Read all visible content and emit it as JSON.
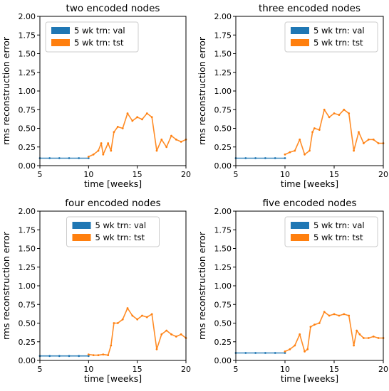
{
  "colors": {
    "val": "#1f77b4",
    "tst": "#ff7f0e"
  },
  "chart_data": [
    {
      "type": "line",
      "title": "two encoded nodes",
      "xlabel": "time [weeks]",
      "ylabel": "rms reconstruction error",
      "xlim": [
        5,
        20
      ],
      "ylim": [
        0,
        2
      ],
      "xticks": [
        "5",
        "10",
        "15",
        "20"
      ],
      "yticks": [
        "0.00",
        "0.25",
        "0.50",
        "0.75",
        "1.00",
        "1.25",
        "1.50",
        "1.75",
        "2.00"
      ],
      "legend_position": "upper-left",
      "series": [
        {
          "name": "5 wk trn: val",
          "color_key": "val",
          "x": [
            5,
            6,
            7,
            8,
            9,
            10
          ],
          "y": [
            0.1,
            0.1,
            0.1,
            0.1,
            0.1,
            0.1
          ]
        },
        {
          "name": "5 wk trn: tst",
          "color_key": "tst",
          "x": [
            10,
            10.5,
            11,
            11.3,
            11.5,
            12,
            12.3,
            12.6,
            13,
            13.5,
            14,
            14.5,
            15,
            15.5,
            16,
            16.5,
            17,
            17.5,
            18,
            18.5,
            19,
            19.5,
            20
          ],
          "y": [
            0.12,
            0.15,
            0.2,
            0.3,
            0.15,
            0.3,
            0.2,
            0.45,
            0.52,
            0.5,
            0.7,
            0.6,
            0.65,
            0.62,
            0.7,
            0.65,
            0.2,
            0.35,
            0.25,
            0.4,
            0.35,
            0.32,
            0.35
          ]
        }
      ]
    },
    {
      "type": "line",
      "title": "three encoded nodes",
      "xlabel": "time [weeks]",
      "ylabel": "rms reconstruction error",
      "xlim": [
        5,
        20
      ],
      "ylim": [
        0,
        2
      ],
      "xticks": [
        "5",
        "10",
        "15",
        "20"
      ],
      "yticks": [
        "0.00",
        "0.25",
        "0.50",
        "0.75",
        "1.00",
        "1.25",
        "1.50",
        "1.75",
        "2.00"
      ],
      "legend_position": "upper-right",
      "series": [
        {
          "name": "5 wk trn: val",
          "color_key": "val",
          "x": [
            5,
            6,
            7,
            8,
            9,
            10
          ],
          "y": [
            0.1,
            0.1,
            0.1,
            0.1,
            0.1,
            0.1
          ]
        },
        {
          "name": "5 wk trn: tst",
          "color_key": "tst",
          "x": [
            10,
            10.5,
            11,
            11.5,
            12,
            12.5,
            12.8,
            13,
            13.5,
            14,
            14.5,
            15,
            15.5,
            16,
            16.5,
            17,
            17.5,
            18,
            18.5,
            19,
            19.5,
            20
          ],
          "y": [
            0.15,
            0.18,
            0.2,
            0.35,
            0.15,
            0.2,
            0.45,
            0.5,
            0.48,
            0.75,
            0.65,
            0.7,
            0.68,
            0.75,
            0.7,
            0.2,
            0.45,
            0.3,
            0.35,
            0.35,
            0.3,
            0.3
          ]
        }
      ]
    },
    {
      "type": "line",
      "title": "four encoded nodes",
      "xlabel": "time [weeks]",
      "ylabel": "rms reconstruction error",
      "xlim": [
        5,
        20
      ],
      "ylim": [
        0,
        2
      ],
      "xticks": [
        "5",
        "10",
        "15",
        "20"
      ],
      "yticks": [
        "0.00",
        "0.25",
        "0.50",
        "0.75",
        "1.00",
        "1.25",
        "1.50",
        "1.75",
        "2.00"
      ],
      "legend_position": "upper-center",
      "series": [
        {
          "name": "5 wk trn: val",
          "color_key": "val",
          "x": [
            5,
            6,
            7,
            8,
            9,
            10
          ],
          "y": [
            0.06,
            0.06,
            0.06,
            0.06,
            0.06,
            0.06
          ]
        },
        {
          "name": "5 wk trn: tst",
          "color_key": "tst",
          "x": [
            10,
            10.5,
            11,
            11.5,
            12,
            12.3,
            12.6,
            13,
            13.5,
            14,
            14.5,
            15,
            15.5,
            16,
            16.5,
            17,
            17.5,
            18,
            18.5,
            19,
            19.5,
            20
          ],
          "y": [
            0.08,
            0.07,
            0.07,
            0.08,
            0.07,
            0.2,
            0.5,
            0.5,
            0.55,
            0.7,
            0.6,
            0.55,
            0.6,
            0.58,
            0.62,
            0.15,
            0.35,
            0.4,
            0.35,
            0.32,
            0.35,
            0.3
          ]
        }
      ]
    },
    {
      "type": "line",
      "title": "five encoded nodes",
      "xlabel": "time [weeks]",
      "ylabel": "rms reconstruction error",
      "xlim": [
        5,
        20
      ],
      "ylim": [
        0,
        2
      ],
      "xticks": [
        "5",
        "10",
        "15",
        "20"
      ],
      "yticks": [
        "0.00",
        "0.25",
        "0.50",
        "0.75",
        "1.00",
        "1.25",
        "1.50",
        "1.75",
        "2.00"
      ],
      "legend_position": "upper-right",
      "series": [
        {
          "name": "5 wk trn: val",
          "color_key": "val",
          "x": [
            5,
            6,
            7,
            8,
            9,
            10
          ],
          "y": [
            0.1,
            0.1,
            0.1,
            0.1,
            0.1,
            0.1
          ]
        },
        {
          "name": "5 wk trn: tst",
          "color_key": "tst",
          "x": [
            10,
            10.5,
            11,
            11.5,
            12,
            12.3,
            12.6,
            13,
            13.5,
            14,
            14.5,
            15,
            15.5,
            16,
            16.5,
            17,
            17.3,
            17.6,
            18,
            18.5,
            19,
            19.5,
            20
          ],
          "y": [
            0.12,
            0.15,
            0.2,
            0.35,
            0.12,
            0.15,
            0.45,
            0.48,
            0.5,
            0.65,
            0.6,
            0.62,
            0.6,
            0.62,
            0.6,
            0.2,
            0.4,
            0.35,
            0.3,
            0.3,
            0.32,
            0.3,
            0.3
          ]
        }
      ]
    }
  ]
}
